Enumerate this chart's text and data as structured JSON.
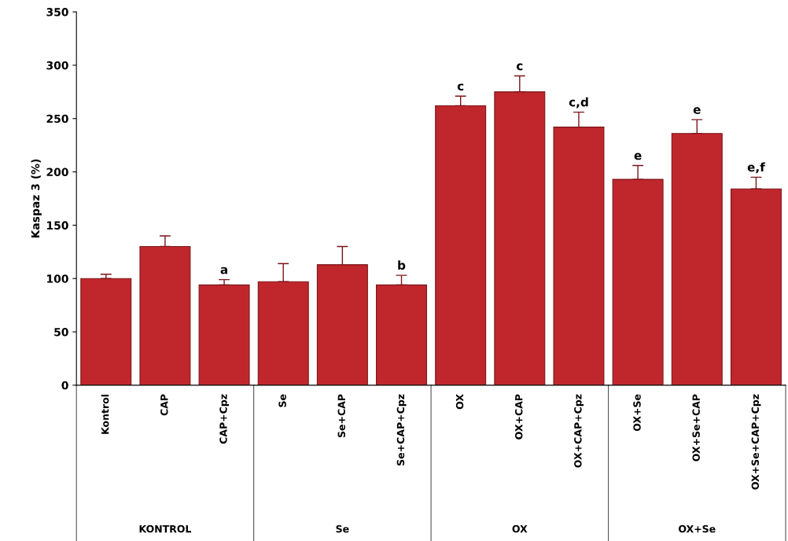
{
  "chart_data": {
    "type": "bar",
    "ylabel": "Kaspaz 3 (%)",
    "categories": [
      "Kontrol",
      "CAP",
      "CAP+Cpz",
      "Se",
      "Se+CAP",
      "Se+CAP+Cpz",
      "OX",
      "OX+CAP",
      "OX+CAP+Cpz",
      "OX+Se",
      "OX+Se+CAP",
      "OX+Se+CAP+Cpz"
    ],
    "values": [
      100,
      130,
      94,
      97,
      113,
      94,
      262,
      275,
      242,
      193,
      236,
      184
    ],
    "errors": [
      4,
      10,
      5,
      17,
      17,
      9,
      9,
      15,
      14,
      13,
      13,
      11
    ],
    "color": "#c0272d",
    "ylim": [
      0,
      350
    ],
    "yticks": [
      0,
      50,
      100,
      150,
      200,
      250,
      300,
      350
    ],
    "grid": false,
    "annotations": [
      {
        "text": "a",
        "x": "CAP+Cpz",
        "y": 99
      },
      {
        "text": "b",
        "x": "Se+CAP+Cpz",
        "y": 103
      },
      {
        "text": "c",
        "x": "OX",
        "y": 271
      },
      {
        "text": "c",
        "x": "OX+CAP",
        "y": 290
      },
      {
        "text": "c,d",
        "x": "OX+CAP+Cpz",
        "y": 256
      },
      {
        "text": "e",
        "x": "OX+Se",
        "y": 206
      },
      {
        "text": "e",
        "x": "OX+Se+CAP",
        "y": 249
      },
      {
        "text": "e,f",
        "x": "OX+Se+CAP+Cpz",
        "y": 195
      },
      "KONTROL",
      "Se",
      "OX",
      "OX+Se"
    ]
  }
}
